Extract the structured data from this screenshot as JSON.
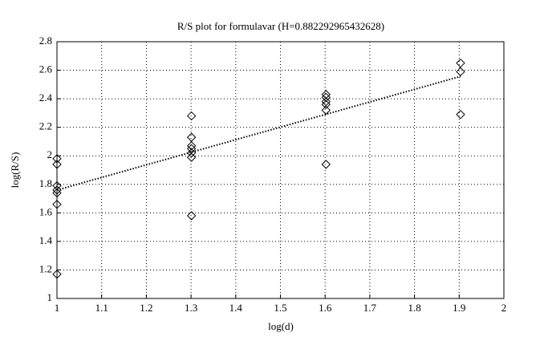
{
  "chart_data": {
    "type": "scatter",
    "title": "R/S plot for formulavar (H=0.882292965432628)",
    "x_label": "log(d)",
    "y_label": "log(R/S)",
    "xlim": [
      1,
      2
    ],
    "ylim": [
      1,
      2.8
    ],
    "xticks": [
      1,
      1.1,
      1.2,
      1.3,
      1.4,
      1.5,
      1.6,
      1.7,
      1.8,
      1.9,
      2
    ],
    "yticks": [
      1,
      1.2,
      1.4,
      1.6,
      1.8,
      2,
      2.2,
      2.4,
      2.6,
      2.8
    ],
    "grid": true,
    "series": [
      {
        "color": "#000000",
        "marker": "diamond",
        "x": [
          1,
          1,
          1,
          1,
          1,
          1,
          1,
          1.301,
          1.301,
          1.301,
          1.301,
          1.301,
          1.301,
          1.301,
          1.602,
          1.602,
          1.602,
          1.602,
          1.602,
          1.602,
          1.903,
          1.903,
          1.903
        ],
        "values": [
          1.98,
          1.94,
          1.79,
          1.76,
          1.74,
          1.66,
          1.17,
          2.28,
          2.13,
          2.07,
          2.05,
          2.02,
          1.99,
          1.58,
          2.43,
          2.41,
          2.38,
          2.36,
          2.32,
          1.94,
          2.65,
          2.59,
          2.29
        ]
      },
      {
        "color": "#000000",
        "line": "dotted",
        "x": [
          1,
          1.903
        ],
        "values": [
          1.76,
          2.557
        ]
      }
    ]
  }
}
